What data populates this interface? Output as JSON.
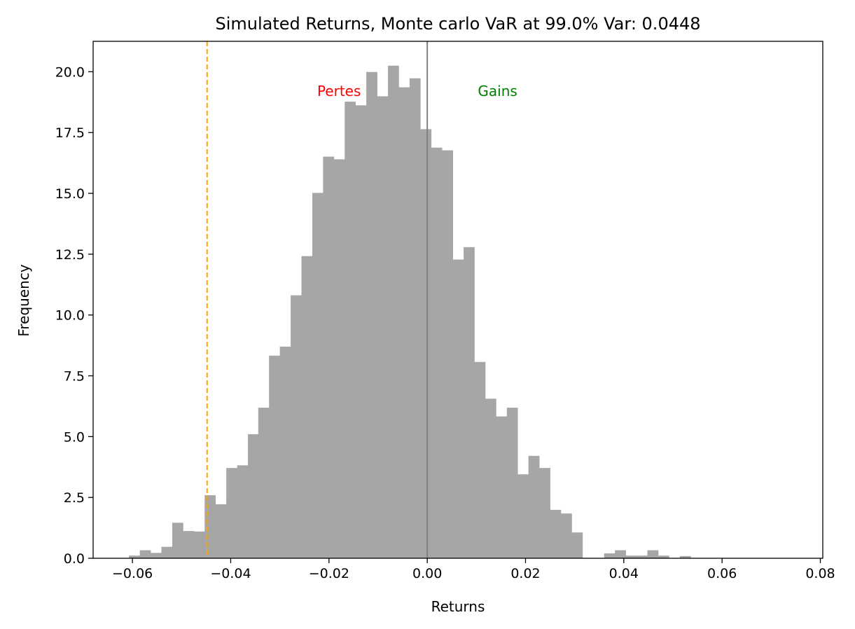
{
  "chart_data": {
    "type": "bar",
    "title": "Simulated Returns, Monte carlo VaR at 99.0% Var: 0.0448",
    "xlabel": "Returns",
    "ylabel": "Frequency",
    "xlim": [
      -0.068,
      0.0805
    ],
    "ylim": [
      0,
      21.25
    ],
    "bin_width": 0.00219,
    "bins": [
      [
        -0.0607,
        0.11
      ],
      [
        -0.0585,
        0.33
      ],
      [
        -0.0563,
        0.22
      ],
      [
        -0.0541,
        0.47
      ],
      [
        -0.0519,
        1.46
      ],
      [
        -0.0497,
        1.12
      ],
      [
        -0.0475,
        1.1
      ],
      [
        -0.0453,
        2.59
      ],
      [
        -0.0431,
        2.22
      ],
      [
        -0.0409,
        3.71
      ],
      [
        -0.0387,
        3.82
      ],
      [
        -0.0365,
        5.1
      ],
      [
        -0.0344,
        6.19
      ],
      [
        -0.0322,
        8.33
      ],
      [
        -0.03,
        8.7
      ],
      [
        -0.0278,
        10.81
      ],
      [
        -0.0256,
        12.42
      ],
      [
        -0.0234,
        15.02
      ],
      [
        -0.0212,
        16.51
      ],
      [
        -0.019,
        16.4
      ],
      [
        -0.0168,
        18.77
      ],
      [
        -0.0146,
        18.62
      ],
      [
        -0.0124,
        19.99
      ],
      [
        -0.0102,
        18.99
      ],
      [
        -0.008,
        20.25
      ],
      [
        -0.0058,
        19.36
      ],
      [
        -0.0036,
        19.73
      ],
      [
        -0.0014,
        17.64
      ],
      [
        0.0008,
        16.88
      ],
      [
        0.003,
        16.77
      ],
      [
        0.0052,
        12.28
      ],
      [
        0.0074,
        12.79
      ],
      [
        0.0096,
        8.07
      ],
      [
        0.0118,
        6.56
      ],
      [
        0.014,
        5.83
      ],
      [
        0.0162,
        6.19
      ],
      [
        0.0184,
        3.45
      ],
      [
        0.0206,
        4.21
      ],
      [
        0.0228,
        3.71
      ],
      [
        0.025,
        1.99
      ],
      [
        0.0272,
        1.84
      ],
      [
        0.0294,
        1.06
      ],
      [
        0.0316,
        0.0
      ],
      [
        0.0338,
        0.0
      ],
      [
        0.036,
        0.2
      ],
      [
        0.0382,
        0.33
      ],
      [
        0.0404,
        0.11
      ],
      [
        0.0426,
        0.11
      ],
      [
        0.0448,
        0.33
      ],
      [
        0.047,
        0.11
      ],
      [
        0.0492,
        0.0
      ],
      [
        0.0514,
        0.09
      ]
    ],
    "bar_color": "#a6a6a6",
    "xticks": [
      -0.06,
      -0.04,
      -0.02,
      0.0,
      0.02,
      0.04,
      0.06,
      0.08
    ],
    "xtick_labels": [
      "−0.06",
      "−0.04",
      "−0.02",
      "0.00",
      "0.02",
      "0.04",
      "0.06",
      "0.08"
    ],
    "yticks": [
      0.0,
      2.5,
      5.0,
      7.5,
      10.0,
      12.5,
      15.0,
      17.5,
      20.0
    ],
    "ytick_labels": [
      "0.0",
      "2.5",
      "5.0",
      "7.5",
      "10.0",
      "12.5",
      "15.0",
      "17.5",
      "20.0"
    ],
    "var_line": {
      "x": -0.0448,
      "color": "#ffa500",
      "style": "dashed"
    },
    "zero_line": {
      "x": 0.0,
      "color": "#808080"
    },
    "annotations": [
      {
        "text": "Pertes",
        "x": -0.0135,
        "y": 19.2,
        "color": "#ff0000",
        "align": "end"
      },
      {
        "text": "Gains",
        "x": 0.0103,
        "y": 19.2,
        "color": "#008000",
        "align": "start"
      }
    ],
    "grid": false,
    "legend": "none"
  }
}
